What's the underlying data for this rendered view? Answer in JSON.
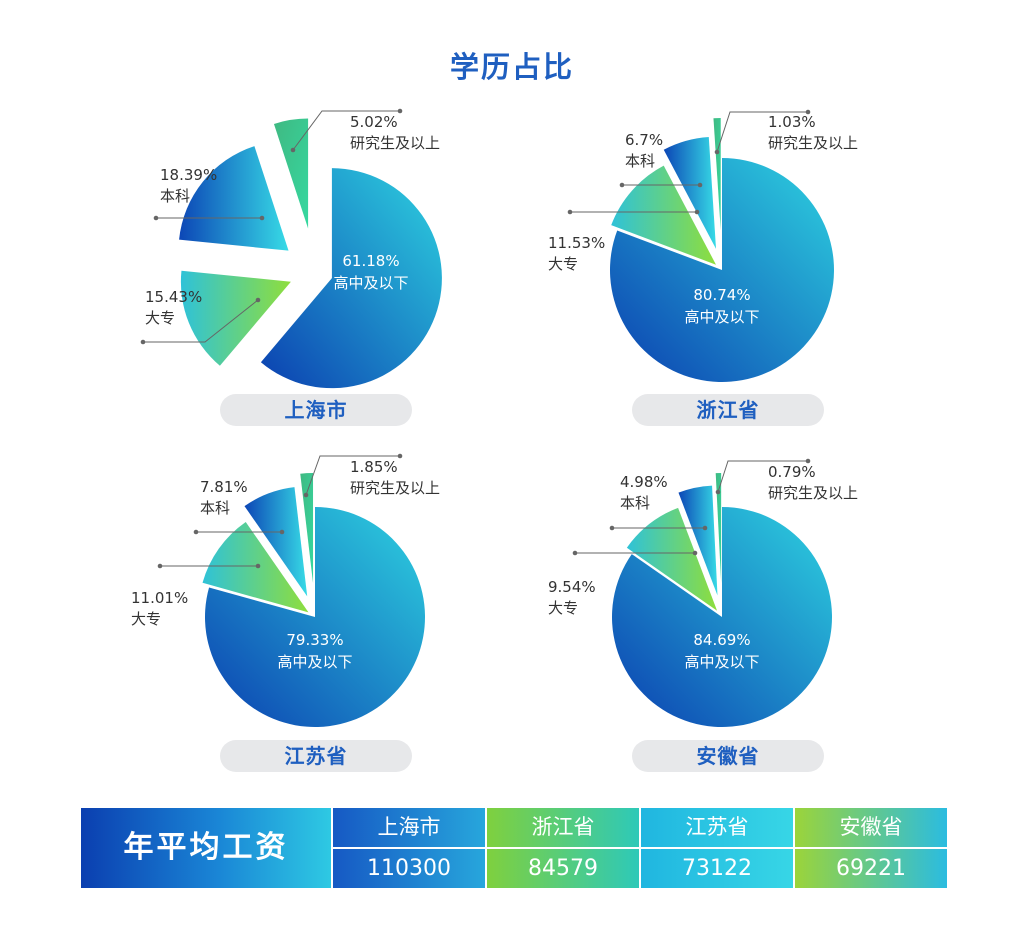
{
  "title": "学历占比",
  "chart_data": [
    {
      "type": "pie",
      "region": "上海市",
      "categories": [
        "高中及以下",
        "大专",
        "本科",
        "研究生及以上"
      ],
      "values": [
        61.18,
        15.43,
        18.39,
        5.02
      ],
      "labels": [
        "61.18%",
        "15.43%",
        "18.39%",
        "5.02%"
      ]
    },
    {
      "type": "pie",
      "region": "浙江省",
      "categories": [
        "高中及以下",
        "大专",
        "本科",
        "研究生及以上"
      ],
      "values": [
        80.74,
        11.53,
        6.7,
        1.03
      ],
      "labels": [
        "80.74%",
        "11.53%",
        "6.7%",
        "1.03%"
      ]
    },
    {
      "type": "pie",
      "region": "江苏省",
      "categories": [
        "高中及以下",
        "大专",
        "本科",
        "研究生及以上"
      ],
      "values": [
        79.33,
        11.01,
        7.81,
        1.85
      ],
      "labels": [
        "79.33%",
        "11.01%",
        "7.81%",
        "1.85%"
      ]
    },
    {
      "type": "pie",
      "region": "安徽省",
      "categories": [
        "高中及以下",
        "大专",
        "本科",
        "研究生及以上"
      ],
      "values": [
        84.69,
        9.54,
        4.98,
        0.79
      ],
      "labels": [
        "84.69%",
        "9.54%",
        "4.98%",
        "0.79%"
      ]
    }
  ],
  "salary": {
    "title": "年平均工资",
    "columns": [
      {
        "region": "上海市",
        "value": "110300"
      },
      {
        "region": "浙江省",
        "value": "84579"
      },
      {
        "region": "江苏省",
        "value": "73122"
      },
      {
        "region": "安徽省",
        "value": "69221"
      }
    ]
  },
  "colors": {
    "title": "#1f5fc0",
    "high_school": [
      "#0b3fb0",
      "#2ed3e0"
    ],
    "college": [
      "#2fc2d8",
      "#8fde3c"
    ],
    "bachelor": [
      "#0c46b6",
      "#37dbe6"
    ],
    "graduate": [
      "#3fb982",
      "#2fd39b"
    ],
    "pill_bg": "#e7e8ea"
  }
}
